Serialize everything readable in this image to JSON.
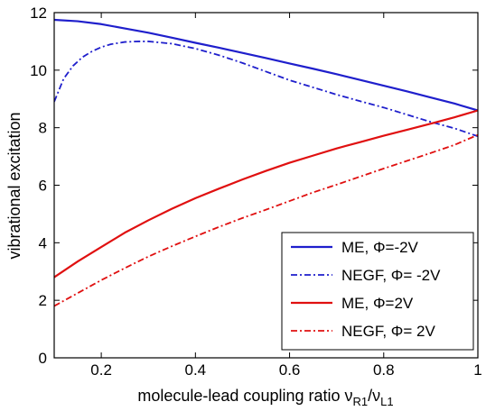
{
  "chart_data": {
    "type": "line",
    "title": "",
    "xlabel": "molecule-lead coupling ratio ν",
    "xlabel_sub1": "R1",
    "xlabel_slash": "/ν",
    "xlabel_sub2": "L1",
    "ylabel": "vibrational excitation",
    "xlim": [
      0.1,
      1.0
    ],
    "ylim": [
      0,
      12
    ],
    "xticks": [
      0.2,
      0.4,
      0.6,
      0.8,
      1.0
    ],
    "xtick_labels": [
      "0.2",
      "0.4",
      "0.6",
      "0.8",
      "1"
    ],
    "yticks": [
      0,
      2,
      4,
      6,
      8,
      10,
      12
    ],
    "ytick_labels": [
      "0",
      "2",
      "4",
      "6",
      "8",
      "10",
      "12"
    ],
    "grid": false,
    "legend_position": "bottom-right",
    "series": [
      {
        "name": "ME, Φ=-2V",
        "color": "#1f1fcc",
        "dash": "solid",
        "x": [
          0.1,
          0.15,
          0.2,
          0.25,
          0.3,
          0.35,
          0.4,
          0.45,
          0.5,
          0.55,
          0.6,
          0.65,
          0.7,
          0.75,
          0.8,
          0.85,
          0.9,
          0.95,
          1.0
        ],
        "y": [
          11.75,
          11.7,
          11.6,
          11.45,
          11.3,
          11.13,
          10.95,
          10.78,
          10.6,
          10.42,
          10.23,
          10.05,
          9.86,
          9.66,
          9.46,
          9.26,
          9.05,
          8.84,
          8.6
        ]
      },
      {
        "name": "NEGF, Φ= -2V",
        "color": "#1f1fcc",
        "dash": "dashdot",
        "x": [
          0.1,
          0.12,
          0.14,
          0.16,
          0.18,
          0.2,
          0.22,
          0.25,
          0.28,
          0.3,
          0.35,
          0.4,
          0.45,
          0.5,
          0.55,
          0.6,
          0.65,
          0.7,
          0.75,
          0.8,
          0.85,
          0.9,
          0.95,
          1.0
        ],
        "y": [
          8.9,
          9.7,
          10.15,
          10.45,
          10.65,
          10.8,
          10.9,
          10.98,
          11.0,
          11.0,
          10.92,
          10.75,
          10.52,
          10.25,
          9.95,
          9.65,
          9.4,
          9.15,
          8.92,
          8.7,
          8.45,
          8.2,
          7.98,
          7.7
        ]
      },
      {
        "name": "ME, Φ=2V",
        "color": "#e01010",
        "dash": "solid",
        "x": [
          0.1,
          0.15,
          0.2,
          0.25,
          0.3,
          0.35,
          0.4,
          0.45,
          0.5,
          0.55,
          0.6,
          0.65,
          0.7,
          0.75,
          0.8,
          0.85,
          0.9,
          0.95,
          1.0
        ],
        "y": [
          2.8,
          3.35,
          3.85,
          4.35,
          4.78,
          5.18,
          5.55,
          5.88,
          6.2,
          6.5,
          6.78,
          7.03,
          7.28,
          7.5,
          7.72,
          7.93,
          8.14,
          8.36,
          8.6
        ]
      },
      {
        "name": "NEGF, Φ= 2V",
        "color": "#e01010",
        "dash": "dashdot",
        "x": [
          0.1,
          0.15,
          0.2,
          0.25,
          0.3,
          0.35,
          0.4,
          0.45,
          0.5,
          0.55,
          0.6,
          0.65,
          0.7,
          0.75,
          0.8,
          0.85,
          0.9,
          0.95,
          1.0
        ],
        "y": [
          1.8,
          2.25,
          2.7,
          3.12,
          3.52,
          3.88,
          4.22,
          4.55,
          4.86,
          5.15,
          5.45,
          5.75,
          6.02,
          6.3,
          6.58,
          6.85,
          7.12,
          7.4,
          7.75
        ]
      }
    ]
  }
}
